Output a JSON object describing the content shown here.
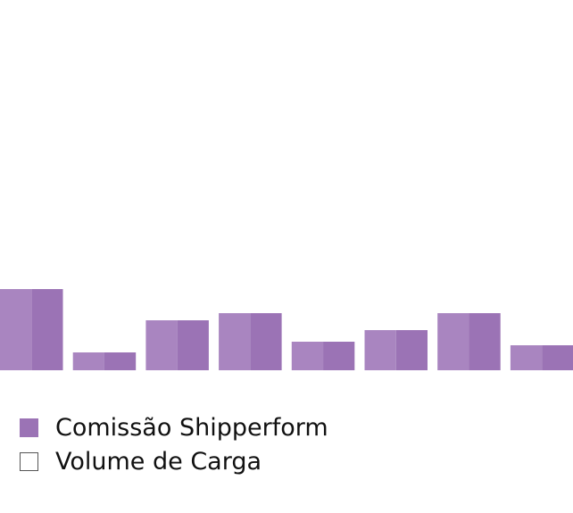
{
  "chart_data": {
    "type": "bar",
    "categories": [
      "",
      "",
      "",
      "",
      "",
      "",
      "",
      ""
    ],
    "series": [
      {
        "name": "Comissão Shipperform",
        "color": "#9b73b5",
        "values": [
          91,
          20,
          56,
          64,
          32,
          45,
          64,
          28
        ]
      },
      {
        "name": "Volume de Carga",
        "color": "#ffffff",
        "values": [
          0,
          0,
          0,
          0,
          0,
          0,
          0,
          0
        ]
      }
    ],
    "bar_light_color": "#a985c0",
    "ylim": [
      0,
      415
    ],
    "grid": false,
    "legend_position": "bottom-left"
  }
}
